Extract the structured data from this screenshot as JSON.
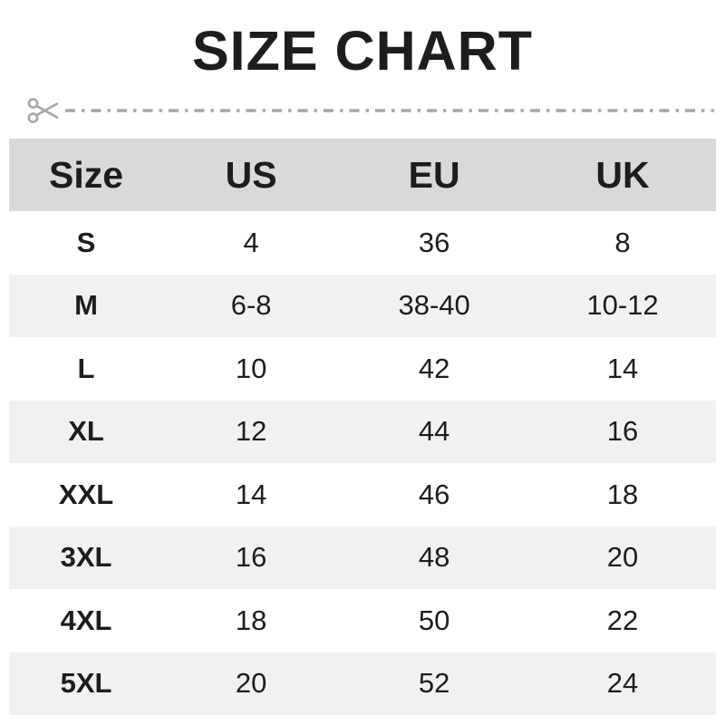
{
  "title": "SIZE CHART",
  "cut_line": {
    "icon": "scissors-icon"
  },
  "table": {
    "headers": [
      "Size",
      "US",
      "EU",
      "UK"
    ],
    "rows": [
      [
        "S",
        "4",
        "36",
        "8"
      ],
      [
        "M",
        "6-8",
        "38-40",
        "10-12"
      ],
      [
        "L",
        "10",
        "42",
        "14"
      ],
      [
        "XL",
        "12",
        "44",
        "16"
      ],
      [
        "XXL",
        "14",
        "46",
        "18"
      ],
      [
        "3XL",
        "16",
        "48",
        "20"
      ],
      [
        "4XL",
        "18",
        "50",
        "22"
      ],
      [
        "5XL",
        "20",
        "52",
        "24"
      ]
    ]
  },
  "colors": {
    "header_bg": "#d9d9d9",
    "stripe_bg": "#f1f1f1",
    "text": "#1d1d1d",
    "muted_line": "#a6a6a6"
  }
}
